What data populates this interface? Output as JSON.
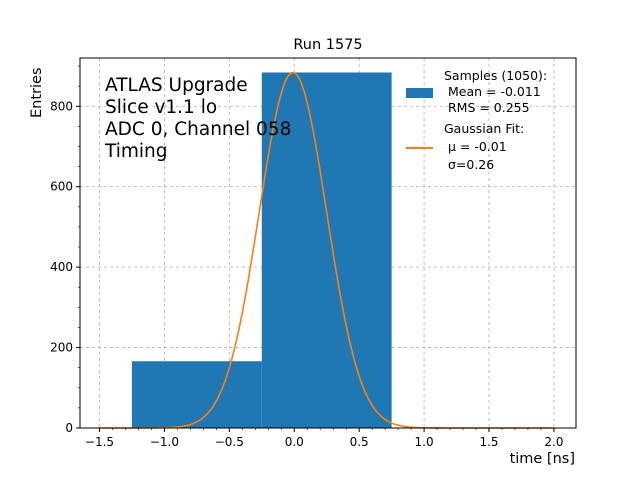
{
  "chart_data": {
    "type": "bar",
    "title": "Run 1575",
    "xlabel": "time [ns]",
    "ylabel": "Entries",
    "xlim": [
      -1.65,
      2.17
    ],
    "ylim": [
      0,
      920
    ],
    "grid": true,
    "xticks": [
      -1.5,
      -1.0,
      -0.5,
      0.0,
      0.5,
      1.0,
      1.5,
      2.0
    ],
    "xtick_labels": [
      "−1.5",
      "−1.0",
      "−0.5",
      "0.0",
      "0.5",
      "1.0",
      "1.5",
      "2.0"
    ],
    "yticks": [
      0,
      200,
      400,
      600,
      800
    ],
    "ytick_labels": [
      "0",
      "200",
      "400",
      "600",
      "800"
    ],
    "histogram": {
      "name": "Samples (1050):",
      "bins": [
        {
          "x0": -1.25,
          "x1": -0.25,
          "value": 166
        },
        {
          "x0": -0.25,
          "x1": 0.75,
          "value": 884
        }
      ],
      "color": "#1f77b4"
    },
    "fit": {
      "name": "Gaussian Fit:",
      "mu": -0.01,
      "sigma": 0.26,
      "amplitude": 884,
      "x_range": [
        -1.5,
        2.0
      ],
      "color": "#ff7f0e"
    },
    "legend": {
      "placement": "top-right",
      "hist_lines": [
        "Samples (1050):",
        " Mean = -0.011",
        " RMS = 0.255"
      ],
      "fit_lines": [
        "Gaussian Fit:",
        " μ = -0.01",
        " σ=0.26"
      ]
    },
    "annotation": [
      "ATLAS Upgrade",
      "Slice v1.1 lo",
      "ADC 0, Channel 058",
      "Timing"
    ]
  }
}
